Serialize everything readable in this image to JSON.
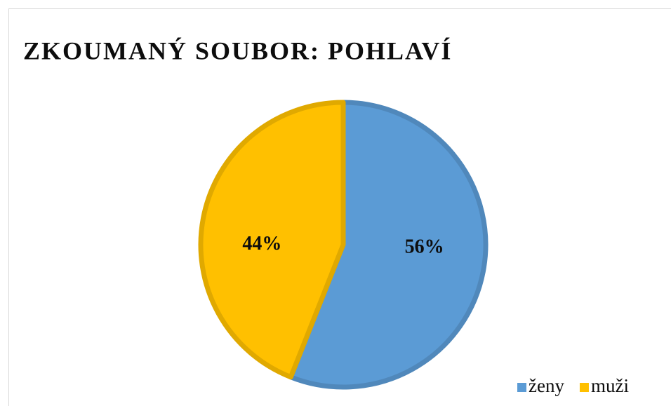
{
  "chart_data": {
    "type": "pie",
    "title": "ZKOUMANÝ SOUBOR: POHLAVÍ",
    "categories": [
      "ženy",
      "muži"
    ],
    "values": [
      56,
      44
    ],
    "value_labels": [
      "56%",
      "44%"
    ],
    "colors": [
      "#5b9bd5",
      "#ffc000"
    ],
    "legend": "bottom-right"
  }
}
